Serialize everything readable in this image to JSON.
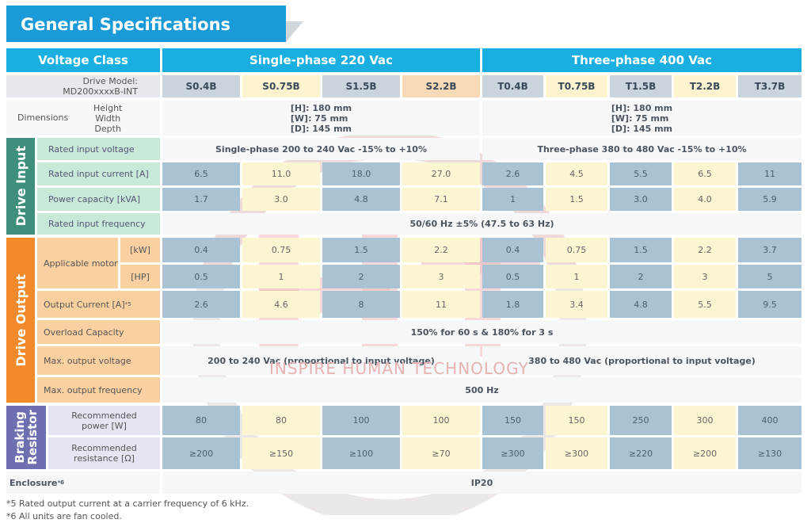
{
  "title": "General Specifications",
  "watermark_text": "INSPIRE HUMAN TECHNOLOGY",
  "header": {
    "voltage_class": "Voltage Class",
    "single_phase": "Single-phase 220 Vac",
    "three_phase": "Three-phase 400 Vac"
  },
  "model": {
    "label_line1": "Drive Model:",
    "label_line2": "MD200xxxxB-INT",
    "single": [
      "S0.4B",
      "S0.75B",
      "S1.5B",
      "S2.2B"
    ],
    "three": [
      "T0.4B",
      "T0.75B",
      "T1.5B",
      "T2.2B",
      "T3.7B"
    ]
  },
  "dimensions": {
    "label": "Dimensions",
    "sub_labels": [
      "Height",
      "Width",
      "Depth"
    ],
    "single": [
      "[H]: 180 mm",
      "[W]: 75 mm",
      "[D]: 145 mm"
    ],
    "three": [
      "[H]: 180 mm",
      "[W]: 75 mm",
      "[D]: 145 mm"
    ]
  },
  "drive_input": {
    "side_label": "Drive Input",
    "rated_input_voltage": {
      "label": "Rated input voltage",
      "single": "Single-phase 200 to 240 Vac -15% to +10%",
      "three": "Three-phase 380 to 480 Vac -15% to +10%"
    },
    "rated_input_current": {
      "label": "Rated input current [A]",
      "values": [
        "6.5",
        "11.0",
        "18.0",
        "27.0",
        "2.6",
        "4.5",
        "5.5",
        "6.5",
        "11"
      ]
    },
    "power_capacity": {
      "label": "Power capacity [kVA]",
      "values": [
        "1.7",
        "3.0",
        "4.8",
        "7.1",
        "1",
        "1.5",
        "3.0",
        "4.0",
        "5.9"
      ]
    },
    "rated_input_frequency": {
      "label": "Rated input frequency",
      "value": "50/60 Hz ±5% (47.5 to 63 Hz)"
    }
  },
  "drive_output": {
    "side_label": "Drive Output",
    "applicable_motor": {
      "label": "Applicable motor",
      "kw_unit": "[kW]",
      "hp_unit": "[HP]",
      "kw": [
        "0.4",
        "0.75",
        "1.5",
        "2.2",
        "0.4",
        "0.75",
        "1.5",
        "2.2",
        "3.7"
      ],
      "hp": [
        "0.5",
        "1",
        "2",
        "3",
        "0.5",
        "1",
        "2",
        "3",
        "5"
      ]
    },
    "output_current": {
      "label": "Output Current [A]",
      "sup": "*5",
      "values": [
        "2.6",
        "4.6",
        "8",
        "11",
        "1.8",
        "3.4",
        "4.8",
        "5.5",
        "9.5"
      ]
    },
    "overload_capacity": {
      "label": "Overload Capacity",
      "value": "150% for 60 s & 180% for 3 s"
    },
    "max_output_voltage": {
      "label": "Max. output voltage",
      "single": "200 to 240 Vac (proportional to input voltage)",
      "three": "380 to 480 Vac (proportional to input voltage)"
    },
    "max_output_frequency": {
      "label": "Max. output frequency",
      "value": "500 Hz"
    }
  },
  "braking": {
    "side_label_line1": "Braking",
    "side_label_line2": "Resistor",
    "power": {
      "label_line1": "Recommended",
      "label_line2": "power [W]",
      "values": [
        "80",
        "80",
        "100",
        "100",
        "150",
        "150",
        "250",
        "300",
        "400"
      ]
    },
    "resistance": {
      "label_line1": "Recommended",
      "label_line2": "resistance [Ω]",
      "values": [
        "≥200",
        "≥150",
        "≥100",
        "≥70",
        "≥300",
        "≥300",
        "≥220",
        "≥200",
        "≥130"
      ]
    }
  },
  "enclosure": {
    "label": "Enclosure",
    "sup": "*6",
    "value": "IP20"
  },
  "footnotes": [
    "*5 Rated output current at a carrier frequency of 6 kHz.",
    "*6 All units are fan cooled."
  ]
}
